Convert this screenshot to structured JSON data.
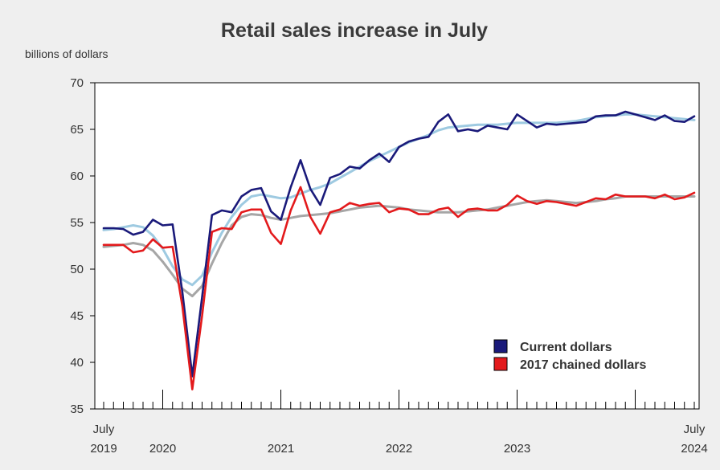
{
  "chart_data": {
    "type": "line",
    "title": "Retail sales increase in July",
    "ylabel": "billions of dollars",
    "xlabel": "",
    "ylim": [
      35,
      70
    ],
    "yticks": [
      35,
      40,
      45,
      50,
      55,
      60,
      65,
      70
    ],
    "grid": false,
    "legend_position": "bottom-right",
    "x_start": "2019-07",
    "x_end": "2024-07",
    "x_tick_labels": [
      {
        "date": "2019-07",
        "top": "July",
        "bottom": "2019"
      },
      {
        "date": "2020-01",
        "top": "",
        "bottom": "2020"
      },
      {
        "date": "2021-01",
        "top": "",
        "bottom": "2021"
      },
      {
        "date": "2022-01",
        "top": "",
        "bottom": "2022"
      },
      {
        "date": "2023-01",
        "top": "",
        "bottom": "2023"
      },
      {
        "date": "2024-07",
        "top": "July",
        "bottom": "2024"
      }
    ],
    "legend": [
      {
        "label": "Current dollars",
        "color": "#1a1a7a"
      },
      {
        "label": "2017 chained dollars",
        "color": "#e31a1c"
      }
    ],
    "series": [
      {
        "name": "Current dollars",
        "color": "#1a1a7a",
        "values": [
          54.4,
          54.4,
          54.3,
          53.7,
          54.0,
          55.3,
          54.7,
          54.8,
          47.5,
          38.5,
          47.0,
          55.8,
          56.3,
          56.1,
          57.8,
          58.5,
          58.7,
          56.2,
          55.3,
          58.8,
          61.7,
          58.6,
          56.9,
          59.8,
          60.2,
          61.0,
          60.8,
          61.7,
          62.4,
          61.5,
          63.1,
          63.7,
          64.0,
          64.2,
          65.8,
          66.6,
          64.8,
          65.0,
          64.8,
          65.4,
          65.2,
          65.0,
          66.6,
          65.9,
          65.2,
          65.6,
          65.5,
          65.6,
          65.7,
          65.8,
          66.4,
          66.5,
          66.5,
          66.9,
          66.6,
          66.3,
          66.0,
          66.5,
          65.9,
          65.8,
          66.4
        ]
      },
      {
        "name": "Current dollars trend",
        "color": "#9ecae1",
        "values": [
          54.2,
          54.3,
          54.5,
          54.7,
          54.5,
          53.6,
          52.2,
          50.3,
          48.9,
          48.3,
          49.3,
          51.8,
          53.9,
          55.6,
          56.9,
          57.8,
          58.0,
          57.8,
          57.6,
          57.7,
          58.1,
          58.5,
          58.8,
          59.2,
          59.8,
          60.4,
          61.0,
          61.6,
          62.1,
          62.6,
          63.1,
          63.6,
          64.0,
          64.4,
          64.9,
          65.2,
          65.3,
          65.4,
          65.5,
          65.5,
          65.5,
          65.6,
          65.7,
          65.7,
          65.7,
          65.7,
          65.7,
          65.8,
          65.9,
          66.1,
          66.3,
          66.4,
          66.5,
          66.6,
          66.6,
          66.5,
          66.4,
          66.3,
          66.2,
          66.1,
          66.0
        ]
      },
      {
        "name": "2017 chained dollars",
        "color": "#e31a1c",
        "values": [
          52.6,
          52.6,
          52.6,
          51.8,
          52.0,
          53.2,
          52.3,
          52.4,
          46.0,
          37.1,
          45.0,
          54.0,
          54.4,
          54.3,
          56.1,
          56.4,
          56.4,
          53.9,
          52.7,
          56.3,
          58.8,
          55.6,
          53.8,
          56.1,
          56.4,
          57.1,
          56.8,
          57.0,
          57.1,
          56.1,
          56.5,
          56.4,
          55.9,
          55.9,
          56.4,
          56.6,
          55.6,
          56.4,
          56.5,
          56.3,
          56.3,
          56.9,
          57.9,
          57.3,
          57.0,
          57.3,
          57.2,
          57.0,
          56.8,
          57.2,
          57.6,
          57.5,
          58.0,
          57.8,
          57.8,
          57.8,
          57.6,
          58.0,
          57.5,
          57.7,
          58.2
        ]
      },
      {
        "name": "2017 chained dollars trend",
        "color": "#a6a6a6",
        "values": [
          52.4,
          52.5,
          52.6,
          52.8,
          52.6,
          52.0,
          50.8,
          49.4,
          47.9,
          47.1,
          48.2,
          50.6,
          52.8,
          54.7,
          55.6,
          55.9,
          55.8,
          55.5,
          55.3,
          55.5,
          55.7,
          55.8,
          55.9,
          56.0,
          56.2,
          56.4,
          56.6,
          56.7,
          56.8,
          56.7,
          56.6,
          56.4,
          56.3,
          56.2,
          56.1,
          56.1,
          56.1,
          56.2,
          56.3,
          56.4,
          56.6,
          56.8,
          57.0,
          57.2,
          57.3,
          57.4,
          57.3,
          57.2,
          57.1,
          57.2,
          57.3,
          57.5,
          57.6,
          57.8,
          57.8,
          57.8,
          57.8,
          57.8,
          57.8,
          57.8,
          57.8
        ]
      }
    ]
  }
}
